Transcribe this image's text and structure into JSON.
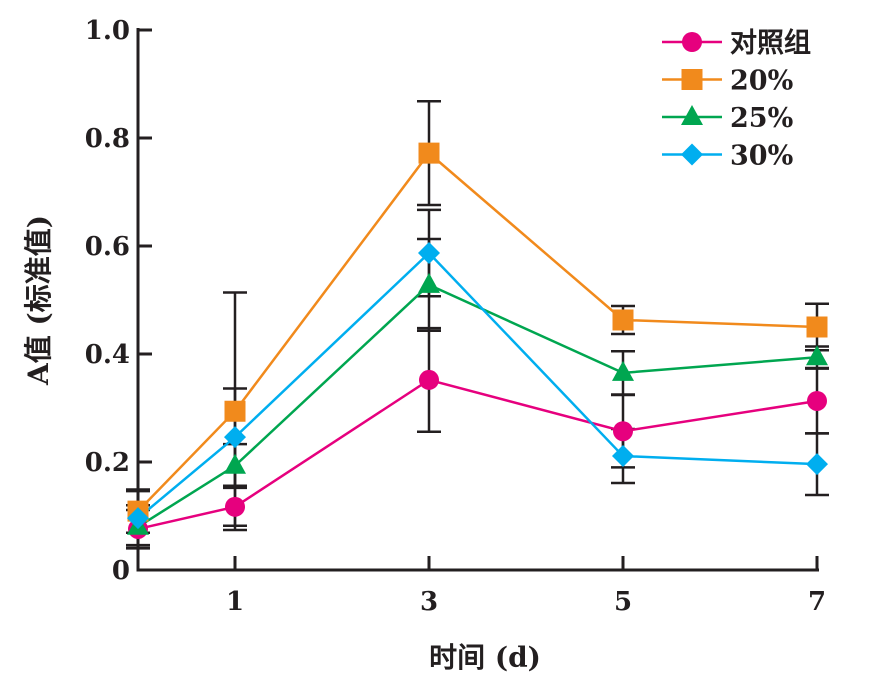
{
  "chart_data": {
    "type": "line",
    "xlabel": "时间 (d)",
    "ylabel": "A值 (标准值)",
    "x": [
      0,
      1,
      3,
      5,
      7
    ],
    "xticks": [
      "1",
      "3",
      "5",
      "7"
    ],
    "xtick_values": [
      1,
      3,
      5,
      7
    ],
    "xlim": [
      0,
      7
    ],
    "ylim": [
      0,
      1.0
    ],
    "yticks": [
      "0",
      "0.2",
      "0.4",
      "0.6",
      "0.8",
      "1.0"
    ],
    "ytick_values": [
      0,
      0.2,
      0.4,
      0.6,
      0.8,
      1.0
    ],
    "grid": false,
    "legend_position": "top-right",
    "error_bars": true,
    "series": [
      {
        "name": "对照组",
        "marker": "circle",
        "color": "#e6007e",
        "values": [
          0.076,
          0.117,
          0.352,
          0.257,
          0.313
        ],
        "errors": [
          0.035,
          0.035,
          0.096,
          0.067,
          0.06
        ]
      },
      {
        "name": "20%",
        "marker": "square",
        "color": "#f18a1c",
        "values": [
          0.109,
          0.294,
          0.772,
          0.463,
          0.45
        ],
        "errors": [
          0.04,
          0.22,
          0.096,
          0.026,
          0.043
        ]
      },
      {
        "name": "25%",
        "marker": "triangle",
        "color": "#00a650",
        "values": [
          0.08,
          0.193,
          0.528,
          0.365,
          0.394
        ],
        "errors": [
          0.04,
          0.04,
          0.085,
          0.04,
          0.02
        ]
      },
      {
        "name": "30%",
        "marker": "diamond",
        "color": "#00aeef",
        "values": [
          0.096,
          0.246,
          0.587,
          0.211,
          0.196
        ],
        "errors": [
          0.05,
          0.09,
          0.08,
          0.05,
          0.057
        ]
      }
    ]
  }
}
